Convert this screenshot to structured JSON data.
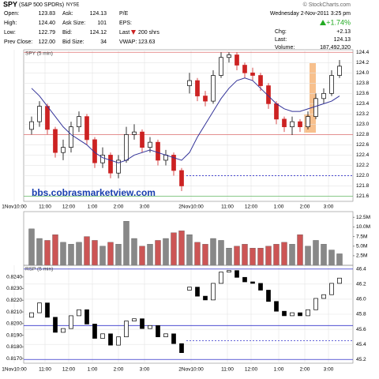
{
  "quote": {
    "symbol": "SPY",
    "name": "(S&P 500 SPDRs)",
    "exchange": "NYSE",
    "source": "© StockCharts.com",
    "datetime": "Wednesday  2-Nov-2011  3:25 pm",
    "change_pct": "+1.74%",
    "left": [
      [
        {
          "label": "Open:",
          "value": "123.83"
        },
        {
          "label": "Ask:",
          "value": "124.13"
        },
        {
          "label": "P/E"
        }
      ],
      [
        {
          "label": "High:",
          "value": "124.40"
        },
        {
          "label": "Ask Size:",
          "value": "101"
        },
        {
          "label": "EPS:"
        }
      ],
      [
        {
          "label": "Low:",
          "value": "122.79"
        },
        {
          "label": "Bid:",
          "value": "124.12"
        },
        {
          "label": "Last",
          "value": "200 shrs"
        }
      ],
      [
        {
          "label": "Prev Close:",
          "value": "122.00"
        },
        {
          "label": "Bid Size:",
          "value": "34"
        },
        {
          "label": "VWAP:",
          "value": "123.63"
        }
      ]
    ],
    "right": [
      {
        "label": "Chg:",
        "value": "+2.13"
      },
      {
        "label": "Last:",
        "value": "124.13"
      },
      {
        "label": "Volume:",
        "value": "187,492,320"
      }
    ]
  },
  "chart_data": [
    {
      "type": "candlestick",
      "title": "SPY (5 min)",
      "watermark": "bbs.cobrasmarketview.com",
      "up_color": "#000000",
      "down_color": "#cc2222",
      "ma_color": "#333399",
      "open": [
        122.9,
        123.05,
        123.35,
        122.9,
        122.45,
        122.55,
        122.95,
        123.15,
        122.7,
        122.25,
        122.4,
        122.05,
        122.3,
        122.8,
        122.85,
        122.55,
        122.65,
        122.3,
        122.4,
        122.1,
        123.75,
        123.85,
        123.55,
        123.45,
        123.95,
        124.3,
        124.35,
        124.15,
        124.0,
        123.95,
        123.75,
        123.4,
        123.1,
        122.95,
        123.05,
        122.95,
        123.15,
        123.5,
        123.6,
        123.95
      ],
      "high": [
        123.15,
        123.45,
        123.4,
        122.95,
        122.7,
        123.05,
        123.25,
        123.2,
        122.75,
        122.55,
        122.45,
        122.4,
        122.95,
        123.0,
        122.9,
        122.75,
        122.7,
        122.5,
        122.45,
        122.15,
        124.0,
        123.9,
        123.65,
        124.05,
        124.4,
        124.4,
        124.4,
        124.2,
        124.1,
        124.0,
        123.8,
        123.45,
        123.15,
        123.15,
        123.1,
        123.25,
        123.6,
        123.7,
        124.05,
        124.25
      ],
      "low": [
        122.8,
        122.95,
        122.8,
        122.35,
        122.3,
        122.45,
        122.85,
        122.6,
        122.15,
        122.15,
        121.95,
        121.95,
        122.25,
        122.7,
        122.45,
        122.45,
        122.2,
        122.2,
        122.0,
        121.7,
        123.6,
        123.45,
        123.35,
        123.4,
        123.9,
        124.2,
        124.05,
        123.9,
        123.85,
        123.65,
        123.3,
        123.0,
        122.85,
        122.79,
        122.85,
        122.9,
        123.1,
        123.4,
        123.55,
        123.9
      ],
      "close": [
        123.05,
        123.35,
        122.9,
        122.45,
        122.55,
        122.95,
        123.15,
        122.7,
        122.25,
        122.4,
        122.05,
        122.3,
        122.8,
        122.85,
        122.55,
        122.65,
        122.3,
        122.4,
        122.1,
        121.8,
        123.85,
        123.55,
        123.45,
        123.95,
        124.3,
        124.35,
        124.15,
        124.0,
        123.95,
        123.75,
        123.4,
        123.1,
        122.95,
        123.05,
        122.95,
        123.15,
        123.5,
        123.6,
        123.95,
        124.13
      ],
      "ma": [
        123.7,
        123.55,
        123.35,
        123.15,
        122.95,
        122.8,
        122.7,
        122.6,
        122.45,
        122.35,
        122.3,
        122.25,
        122.3,
        122.4,
        122.45,
        122.5,
        122.45,
        122.4,
        122.35,
        122.3,
        122.45,
        122.75,
        123.0,
        123.25,
        123.5,
        123.7,
        123.85,
        123.9,
        123.85,
        123.7,
        123.55,
        123.4,
        123.3,
        123.25,
        123.25,
        123.3,
        123.35,
        123.4,
        123.45,
        123.55
      ],
      "hlines": [
        {
          "value": 124.4,
          "color": "#e07070"
        },
        {
          "value": 122.8,
          "color": "#e07070"
        },
        {
          "value": 121.6,
          "color": "#66bb66"
        },
        {
          "value": 122.0,
          "color": "#3333cc",
          "dashed": true,
          "xmin": 19.6
        }
      ],
      "xlim": [
        -1,
        40.7
      ],
      "ylim": [
        121.5,
        124.45
      ],
      "yticks": [
        121.6,
        121.8,
        {
          "value": 122,
          "label": "122.0"
        },
        122.2,
        122.4,
        122.6,
        122.8,
        {
          "value": 123,
          "label": "123.0"
        },
        123.2,
        123.4,
        123.6,
        123.8,
        {
          "value": 124,
          "label": "124.0"
        },
        124.2,
        124.4
      ],
      "xticks": [
        {
          "value": -2.2,
          "label": "1Nov10:00"
        },
        {
          "value": 1.7,
          "label": "11:00"
        },
        {
          "value": 4.7,
          "label": "12:00"
        },
        {
          "value": 7.7,
          "label": "1:00"
        },
        {
          "value": 11,
          "label": "2:00"
        },
        {
          "value": 14.3,
          "label": "3:00"
        },
        {
          "value": 20.2,
          "label": "2Nov10:00"
        },
        {
          "value": 24.8,
          "label": "11:00"
        },
        {
          "value": 27.8,
          "label": "12:00"
        },
        {
          "value": 31.3,
          "label": "1:00"
        },
        {
          "value": 34.6,
          "label": "2:00"
        },
        {
          "value": 37.6,
          "label": "3:00"
        }
      ],
      "grid": true
    },
    {
      "type": "bar",
      "up_color": "#888888",
      "down_color": "#cc5555",
      "values": [
        9500000,
        7000000,
        6500000,
        8000000,
        6000000,
        5500000,
        6000000,
        7500000,
        6500000,
        5000000,
        6000000,
        5500000,
        11500000,
        7000000,
        5000000,
        5500000,
        6500000,
        7000000,
        8500000,
        9000000,
        8000000,
        6000000,
        5500000,
        7000000,
        6500000,
        4500000,
        5000000,
        5500000,
        4500000,
        4500000,
        5000000,
        5500000,
        6000000,
        5500000,
        8000000,
        5000000,
        6500000,
        5500000,
        4000000,
        3000000
      ],
      "xlim": [
        -1,
        40.7
      ],
      "ylim": [
        0,
        14000000
      ],
      "yticks": [
        {
          "value": 2500000,
          "label": "2.5M"
        },
        {
          "value": 5000000,
          "label": "5.0M"
        },
        {
          "value": 7500000,
          "label": "7.5M"
        },
        {
          "value": 10000000,
          "label": "10.0M"
        },
        {
          "value": 12500000,
          "label": "12.5M"
        }
      ]
    },
    {
      "type": "candlestick",
      "title": "RSP (5 min)",
      "up_color": "#000000",
      "down_color": "#000000",
      "axis": "y2",
      "open": [
        45.76,
        45.82,
        45.95,
        45.76,
        45.56,
        45.61,
        45.78,
        45.86,
        45.67,
        45.48,
        45.54,
        45.39,
        45.5,
        45.71,
        45.74,
        45.61,
        45.65,
        45.5,
        45.54,
        45.41,
        46.12,
        46.16,
        46.04,
        45.99,
        46.21,
        46.36,
        46.38,
        46.29,
        46.23,
        46.21,
        46.12,
        45.97,
        45.84,
        45.78,
        45.82,
        45.78,
        45.86,
        46.01,
        46.06,
        46.21
      ],
      "close": [
        45.82,
        45.95,
        45.76,
        45.56,
        45.61,
        45.78,
        45.86,
        45.67,
        45.48,
        45.54,
        45.39,
        45.5,
        45.71,
        45.74,
        45.61,
        45.65,
        45.5,
        45.54,
        45.41,
        45.29,
        46.16,
        46.04,
        45.99,
        46.21,
        46.36,
        46.38,
        46.29,
        46.23,
        46.21,
        46.12,
        45.97,
        45.84,
        45.78,
        45.82,
        45.78,
        45.86,
        46.01,
        46.06,
        46.21,
        46.28
      ],
      "hlines": [
        {
          "value": 46.4,
          "color": "#3333cc"
        },
        {
          "value": 45.65,
          "color": "#3333cc"
        },
        {
          "value": 45.2,
          "color": "#3333cc"
        },
        {
          "value": 45.45,
          "color": "#3333cc",
          "dashed": true,
          "xmin": 19.6
        }
      ],
      "xlim": [
        -1,
        40.7
      ],
      "ylim": [
        0.8166,
        0.825
      ],
      "y2lim": [
        45.15,
        46.45
      ],
      "yticks": [
        {
          "value": 0.817,
          "label": "0.8170"
        },
        {
          "value": 0.818,
          "label": "0.8180"
        },
        {
          "value": 0.819,
          "label": "0.8190"
        },
        {
          "value": 0.82,
          "label": "0.8200"
        },
        {
          "value": 0.821,
          "label": "0.8210"
        },
        {
          "value": 0.822,
          "label": "0.8220"
        },
        {
          "value": 0.823,
          "label": "0.8230"
        },
        {
          "value": 0.824,
          "label": "0.8240"
        }
      ],
      "y2ticks": [
        45.2,
        45.4,
        45.6,
        45.8,
        {
          "value": 46,
          "label": "46.0"
        },
        46.2,
        46.4
      ],
      "xticks": [
        {
          "value": -2.2,
          "label": "1Nov10:00"
        },
        {
          "value": 1.7,
          "label": "11:00"
        },
        {
          "value": 4.7,
          "label": "12:00"
        },
        {
          "value": 7.7,
          "label": "1:00"
        },
        {
          "value": 11,
          "label": "2:00"
        },
        {
          "value": 14.3,
          "label": "3:00"
        },
        {
          "value": 20.2,
          "label": "2Nov10:00"
        },
        {
          "value": 24.8,
          "label": "11:00"
        },
        {
          "value": 27.8,
          "label": "12:00"
        },
        {
          "value": 31.3,
          "label": "1:00"
        },
        {
          "value": 34.6,
          "label": "2:00"
        },
        {
          "value": 37.6,
          "label": "3:00"
        }
      ],
      "grid": true
    }
  ]
}
